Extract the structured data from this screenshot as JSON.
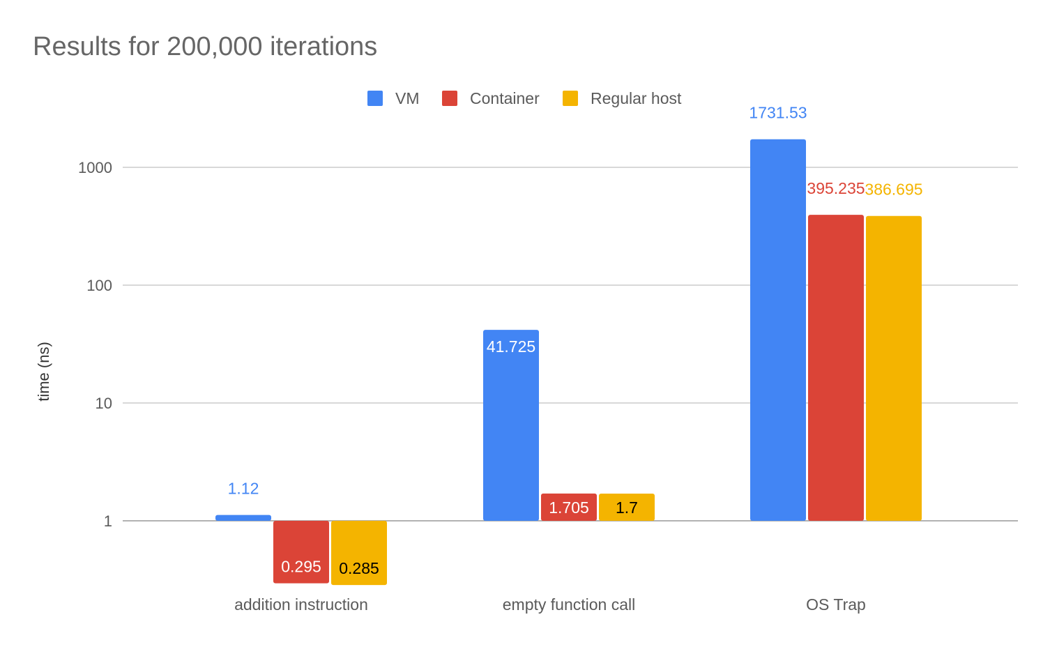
{
  "chart_data": {
    "type": "bar",
    "title": "Results for 200,000 iterations",
    "xlabel": "",
    "ylabel": "time (ns)",
    "yscale": "log",
    "ylim": [
      0.28,
      2000
    ],
    "yticks": [
      1,
      10,
      100,
      1000
    ],
    "ytick_labels": [
      "1",
      "10",
      "100",
      "1000"
    ],
    "grid": true,
    "legend_position": "top-center",
    "categories": [
      "addition instruction",
      "empty function call",
      "OS Trap"
    ],
    "series": [
      {
        "name": "VM",
        "color": "#4285f4",
        "values": [
          1.12,
          41.725,
          1731.53
        ],
        "labels": [
          "1.12",
          "41.725",
          "1731.53"
        ]
      },
      {
        "name": "Container",
        "color": "#db4437",
        "values": [
          0.295,
          1.705,
          395.235
        ],
        "labels": [
          "0.295",
          "1.705",
          "395.235"
        ]
      },
      {
        "name": "Regular host",
        "color": "#f4b400",
        "values": [
          0.285,
          1.7,
          386.695
        ],
        "labels": [
          "0.285",
          "1.7",
          "386.695"
        ]
      }
    ]
  }
}
